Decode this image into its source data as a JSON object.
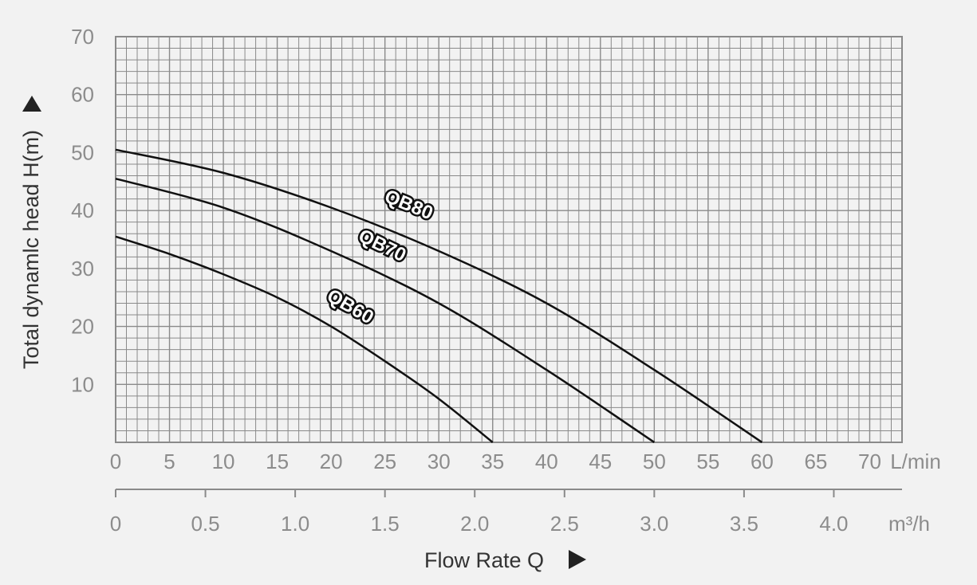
{
  "chart_data": {
    "type": "line",
    "ylabel": "Total dynamlc head H(m)",
    "xlabel": "Flow Rate Q",
    "x_unit_primary": "L/min",
    "x_unit_secondary": "m³/h",
    "xlim": [
      0,
      73
    ],
    "ylim": [
      0,
      70
    ],
    "x_ticks_primary": [
      "0",
      "5",
      "10",
      "15",
      "20",
      "25",
      "30",
      "35",
      "40",
      "45",
      "50",
      "55",
      "60",
      "65",
      "70"
    ],
    "x_ticks_secondary": [
      "0",
      "0.5",
      "1.0",
      "1.5",
      "2.0",
      "2.5",
      "3.0",
      "3.5",
      "4.0"
    ],
    "y_ticks": [
      "10",
      "20",
      "30",
      "40",
      "50",
      "60",
      "70"
    ],
    "grid": true,
    "series": [
      {
        "name": "QB80",
        "x": [
          0,
          10,
          20,
          30,
          40,
          50,
          60
        ],
        "y": [
          50.5,
          46.5,
          40.5,
          33,
          24,
          12.5,
          0
        ]
      },
      {
        "name": "QB70",
        "x": [
          0,
          10,
          20,
          30,
          40,
          50
        ],
        "y": [
          45.5,
          40.5,
          33,
          24,
          12.5,
          0
        ]
      },
      {
        "name": "QB60",
        "x": [
          0,
          5,
          10,
          15,
          20,
          25,
          30,
          35
        ],
        "y": [
          35.5,
          32.5,
          29,
          25,
          20,
          14,
          7.5,
          0
        ]
      }
    ],
    "colors": {
      "grid": "#8a8a8a",
      "curve": "#111111",
      "tick": "#8c8c8c",
      "title": "#333333",
      "background": "#f2f2f2"
    }
  }
}
